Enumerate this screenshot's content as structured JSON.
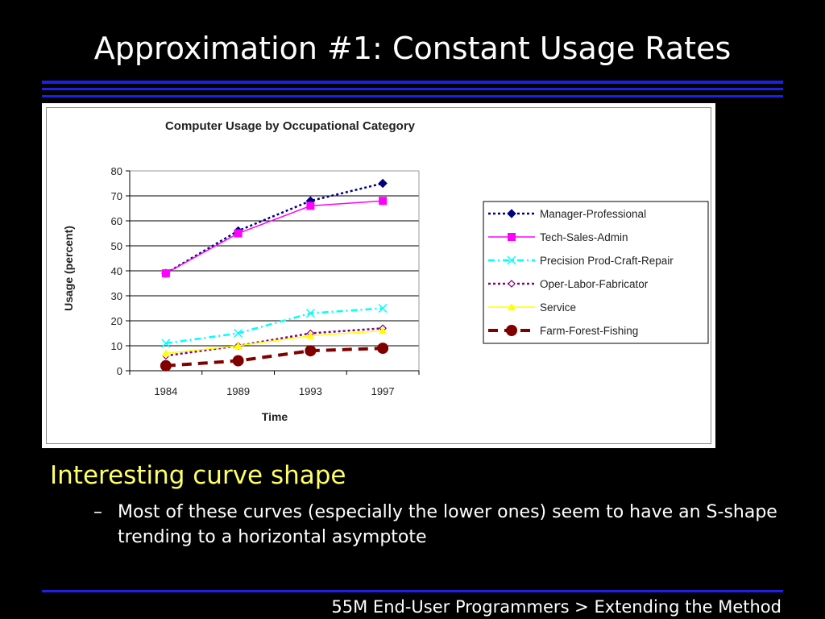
{
  "slide": {
    "title": "Approximation #1: Constant Usage Rates",
    "bullet": "Interesting curve shape",
    "dash": "–",
    "sub_bullet": "Most of these curves (especially the lower ones) seem to have an S-shape trending to a horizontal asymptote",
    "footer": "55M End-User Programmers > Extending the Method"
  },
  "colors": {
    "background": "#000000",
    "title": "#ffffff",
    "bullet": "#ffff66",
    "rule": "#1f1fe6"
  },
  "chart_data": {
    "type": "line",
    "title": "Computer Usage by Occupational Category",
    "xlabel": "Time",
    "ylabel": "Usage (percent)",
    "categories": [
      "1984",
      "1989",
      "1993",
      "1997"
    ],
    "ylim": [
      0,
      80
    ],
    "yticks": [
      0,
      10,
      20,
      30,
      40,
      50,
      60,
      70,
      80
    ],
    "grid": "horizontal",
    "legend_position": "right",
    "series": [
      {
        "name": "Manager-Professional",
        "values": [
          39,
          56,
          68,
          75
        ],
        "color": "#000080",
        "dash": "dotted",
        "marker": "diamond"
      },
      {
        "name": "Tech-Sales-Admin",
        "values": [
          39,
          55,
          66,
          68
        ],
        "color": "#ff00ff",
        "dash": "solid",
        "marker": "square"
      },
      {
        "name": "Precision Prod-Craft-Repair",
        "values": [
          11,
          15,
          23,
          25
        ],
        "color": "#00ffff",
        "dash": "dashdot",
        "marker": "x"
      },
      {
        "name": "Oper-Labor-Fabricator",
        "values": [
          6,
          10,
          15,
          17
        ],
        "color": "#800080",
        "dash": "dotted",
        "marker": "open-diamond"
      },
      {
        "name": "Service",
        "values": [
          7,
          10,
          14,
          16
        ],
        "color": "#ffff00",
        "dash": "solid",
        "marker": "triangle"
      },
      {
        "name": "Farm-Forest-Fishing",
        "values": [
          2,
          4,
          8,
          9
        ],
        "color": "#800000",
        "dash": "dashed",
        "marker": "circle"
      }
    ]
  }
}
